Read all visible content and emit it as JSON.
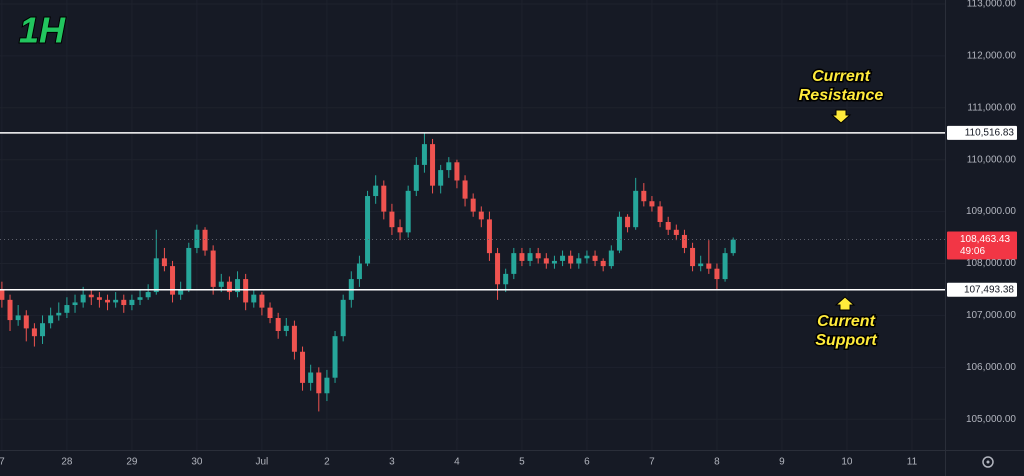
{
  "chart_data": {
    "type": "candlestick",
    "x": [
      0,
      3,
      6,
      9,
      12,
      15,
      18,
      21,
      24,
      27,
      30,
      33,
      36,
      39,
      42,
      45,
      48,
      51,
      54,
      57,
      60,
      63,
      66,
      69,
      72,
      75,
      78,
      81,
      84,
      87,
      90,
      93,
      96,
      99,
      102,
      105,
      108,
      111,
      114,
      117,
      120,
      123,
      126,
      129,
      132,
      135,
      138,
      141,
      144,
      147,
      150,
      153,
      156,
      159,
      162,
      165,
      168,
      171,
      174,
      177,
      180,
      183,
      186,
      189,
      192,
      195,
      198,
      201,
      204,
      207,
      210,
      213,
      216,
      219,
      222,
      225,
      228,
      231,
      234,
      237,
      240,
      243,
      246,
      249,
      252,
      255,
      258,
      261,
      264,
      267,
      270
    ],
    "open": [
      107500,
      107300,
      106910,
      107000,
      106750,
      106600,
      106850,
      107000,
      107050,
      107200,
      107250,
      107400,
      107350,
      107300,
      107250,
      107300,
      107200,
      107300,
      107350,
      107450,
      108100,
      107950,
      107400,
      107500,
      108300,
      108650,
      108250,
      107550,
      107650,
      107450,
      107700,
      107250,
      107400,
      107150,
      106950,
      106700,
      106800,
      106300,
      105700,
      105900,
      105500,
      105800,
      106600,
      107300,
      107700,
      108000,
      109300,
      109500,
      109000,
      108700,
      108600,
      109400,
      109900,
      110300,
      109500,
      109800,
      109950,
      109600,
      109250,
      109000,
      108850,
      108200,
      107600,
      107800,
      108200,
      108050,
      108200,
      108100,
      108000,
      108050,
      108150,
      108000,
      108100,
      108150,
      108050,
      107950,
      108250,
      108900,
      108700,
      109400,
      109200,
      109100,
      108800,
      108650,
      108550,
      108300,
      107950,
      108000,
      107900,
      107700,
      108200
    ],
    "high": [
      107650,
      107400,
      107200,
      107100,
      106850,
      107000,
      107150,
      107250,
      107350,
      107400,
      107550,
      107500,
      107450,
      107400,
      107450,
      107400,
      107400,
      107500,
      107600,
      108650,
      108300,
      108050,
      107650,
      108400,
      108750,
      108700,
      108350,
      107800,
      107750,
      107850,
      107800,
      107500,
      107450,
      107250,
      107050,
      106950,
      106900,
      106400,
      106050,
      106000,
      105950,
      106700,
      107400,
      107850,
      108150,
      109400,
      109700,
      109600,
      109150,
      108850,
      109500,
      110050,
      110520,
      110400,
      109900,
      110050,
      110000,
      109700,
      109350,
      109100,
      109000,
      108300,
      107900,
      108300,
      108300,
      108300,
      108300,
      108200,
      108150,
      108250,
      108250,
      108200,
      108250,
      108250,
      108100,
      108350,
      109000,
      108950,
      109650,
      109550,
      109300,
      109200,
      108900,
      108750,
      108650,
      108400,
      108150,
      108450,
      108000,
      108300,
      108500
    ],
    "low": [
      107150,
      106700,
      106800,
      106500,
      106400,
      106450,
      106750,
      106900,
      106950,
      107050,
      107150,
      107200,
      107150,
      107100,
      107150,
      107050,
      107100,
      107200,
      107300,
      107400,
      107850,
      107250,
      107300,
      107450,
      108200,
      108150,
      107400,
      107450,
      107300,
      107350,
      107100,
      107150,
      107000,
      106850,
      106550,
      106600,
      106150,
      105550,
      105550,
      105150,
      105350,
      105700,
      106500,
      107150,
      107550,
      107950,
      109150,
      108850,
      108550,
      108450,
      108500,
      109300,
      109750,
      109350,
      109350,
      109650,
      109450,
      109100,
      108900,
      108700,
      108050,
      107300,
      107450,
      107700,
      107950,
      107950,
      108000,
      107900,
      107900,
      107950,
      107900,
      107900,
      108000,
      107950,
      107850,
      107900,
      108200,
      108600,
      108650,
      109100,
      109000,
      108700,
      108550,
      108450,
      108200,
      107850,
      107850,
      107800,
      107480,
      107650,
      108150
    ],
    "close": [
      107300,
      106910,
      107000,
      106750,
      106600,
      106850,
      107000,
      107050,
      107200,
      107250,
      107400,
      107350,
      107300,
      107250,
      107300,
      107200,
      107300,
      107350,
      107450,
      108100,
      107950,
      107400,
      107500,
      108300,
      108650,
      108250,
      107550,
      107650,
      107450,
      107700,
      107250,
      107400,
      107150,
      106950,
      106700,
      106800,
      106300,
      105700,
      105900,
      105500,
      105800,
      106600,
      107300,
      107700,
      108000,
      109300,
      109500,
      109000,
      108700,
      108600,
      109400,
      109900,
      110300,
      109500,
      109800,
      109950,
      109600,
      109250,
      109000,
      108850,
      108200,
      107600,
      107800,
      108200,
      108050,
      108200,
      108100,
      108000,
      108050,
      108150,
      108000,
      108100,
      108150,
      108050,
      107950,
      108250,
      108900,
      108700,
      109400,
      109200,
      109100,
      108800,
      108650,
      108550,
      108300,
      107950,
      108000,
      107900,
      107700,
      108200,
      108460
    ],
    "up_color": "#26a69a",
    "down_color": "#ef5350",
    "xlim": [
      -0.7,
      348.2
    ],
    "xticks": [
      {
        "value": 0,
        "label": "7"
      },
      {
        "value": 24,
        "label": "28"
      },
      {
        "value": 48,
        "label": "29"
      },
      {
        "value": 72,
        "label": "30"
      },
      {
        "value": 96,
        "label": "Jul"
      },
      {
        "value": 120,
        "label": "2"
      },
      {
        "value": 144,
        "label": "3"
      },
      {
        "value": 168,
        "label": "4"
      },
      {
        "value": 192,
        "label": "5"
      },
      {
        "value": 216,
        "label": "6"
      },
      {
        "value": 240,
        "label": "7"
      },
      {
        "value": 264,
        "label": "8"
      },
      {
        "value": 288,
        "label": "9"
      },
      {
        "value": 312,
        "label": "10"
      },
      {
        "value": 336,
        "label": "11"
      }
    ],
    "ylim": [
      104407,
      113077
    ],
    "yticks": [
      {
        "value": 105000,
        "label": "105,000.00"
      },
      {
        "value": 106000,
        "label": "106,000.00"
      },
      {
        "value": 107000,
        "label": "107,000.00"
      },
      {
        "value": 108000,
        "label": "108,000.00"
      },
      {
        "value": 109000,
        "label": "109,000.00"
      },
      {
        "value": 110000,
        "label": "110,000.00"
      },
      {
        "value": 111000,
        "label": "111,000.00"
      },
      {
        "value": 112000,
        "label": "112,000.00"
      },
      {
        "value": 113000,
        "label": "113,000.00"
      }
    ],
    "grid": true,
    "hlines": [
      {
        "value": 110516.83,
        "label": "110,516.83"
      },
      {
        "value": 107493.38,
        "label": "107,493.38"
      }
    ],
    "last_price": {
      "value": 108463.43,
      "label": "108,463.43"
    },
    "countdown": "49:06",
    "timeframe": "1H",
    "resistance_note": [
      "Current",
      "Resistance"
    ],
    "support_note": [
      "Current",
      "Support"
    ]
  }
}
